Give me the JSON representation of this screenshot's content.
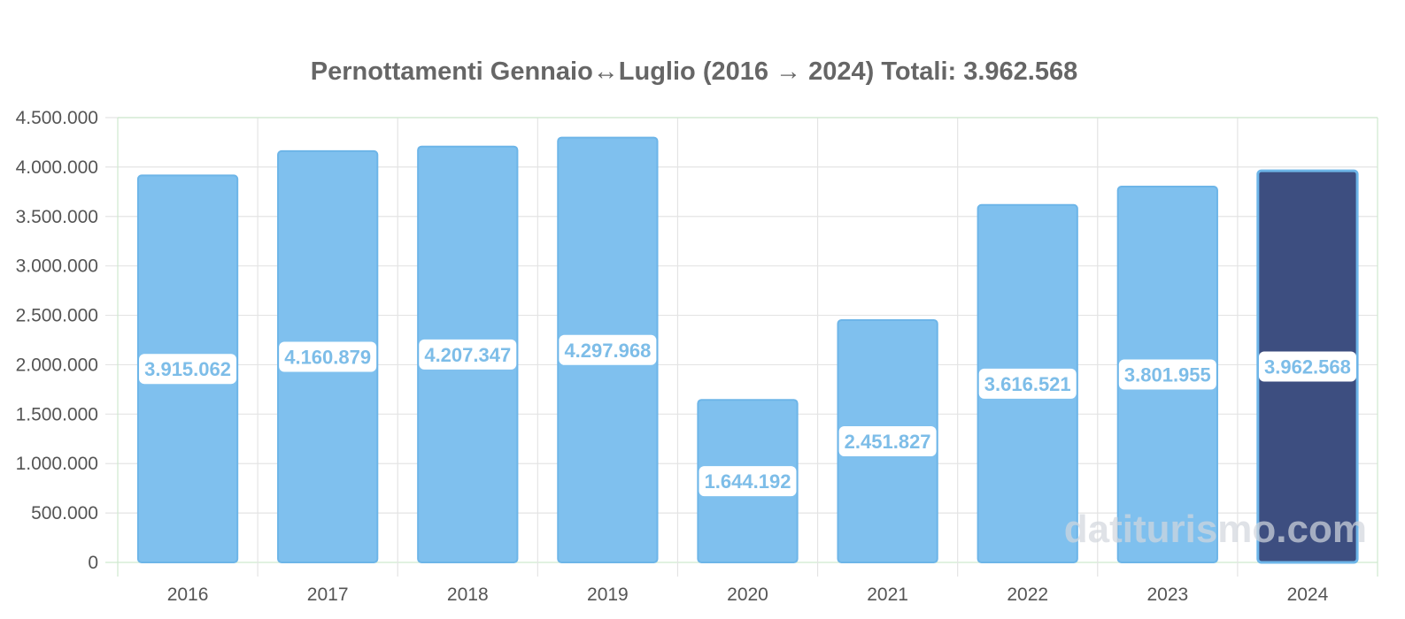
{
  "chart_data": {
    "type": "bar",
    "title": "Pernottamenti Gennaio↔Luglio (2016 → 2024) Totali: 3.962.568",
    "categories": [
      "2016",
      "2017",
      "2018",
      "2019",
      "2020",
      "2021",
      "2022",
      "2023",
      "2024"
    ],
    "values": [
      3915062,
      4160879,
      4207347,
      4297968,
      1644192,
      2451827,
      3616521,
      3801955,
      3962568
    ],
    "value_labels": [
      "3.915.062",
      "4.160.879",
      "4.207.347",
      "4.297.968",
      "1.644.192",
      "2.451.827",
      "3.616.521",
      "3.801.955",
      "3.962.568"
    ],
    "yticks": [
      0,
      500000,
      1000000,
      1500000,
      2000000,
      2500000,
      3000000,
      3500000,
      4000000,
      4500000
    ],
    "ytick_labels": [
      "0",
      "500.000",
      "1.000.000",
      "1.500.000",
      "2.000.000",
      "2.500.000",
      "3.000.000",
      "3.500.000",
      "4.000.000",
      "4.500.000"
    ],
    "ylim": [
      0,
      4500000
    ],
    "xlabel": "",
    "ylabel": "",
    "grid": true,
    "highlight_category": "2024",
    "colors": {
      "bar": "#7fc0ee",
      "bar_border": "#6db5e8",
      "highlight": "#3d4e80",
      "label_text": "#7dbde8",
      "grid": "#e4e4e4",
      "frame": "#cfe9cf"
    }
  },
  "watermark": "datiturismo.com"
}
